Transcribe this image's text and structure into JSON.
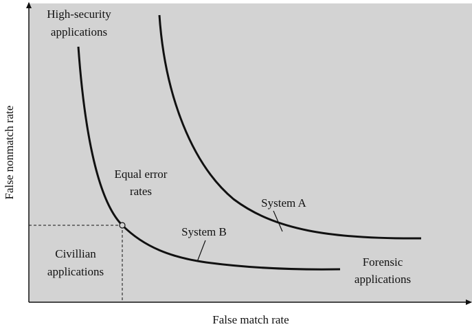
{
  "axes": {
    "x_label": "False match rate",
    "y_label": "False nonmatch rate"
  },
  "curves": [
    {
      "label": "System A"
    },
    {
      "label": "System B"
    }
  ],
  "annotations": {
    "high_security": [
      "High-security",
      "applications"
    ],
    "equal_error": [
      "Equal error",
      "rates"
    ],
    "civilian": [
      "Civillian",
      "applications"
    ],
    "forensic": [
      "Forensic",
      "applications"
    ]
  }
}
